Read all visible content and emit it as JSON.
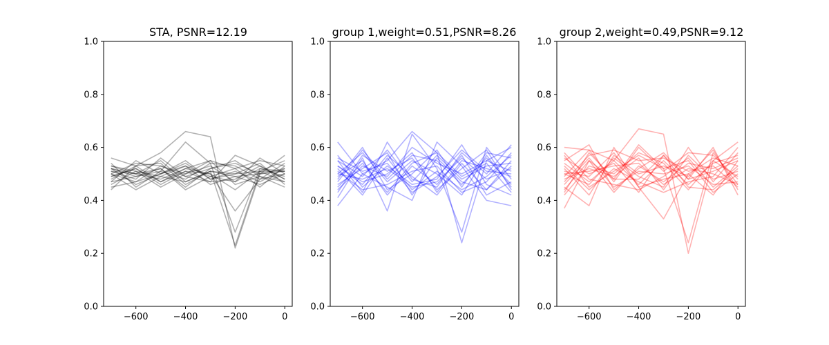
{
  "chart_data": [
    {
      "type": "line",
      "title": "STA, PSNR=12.19",
      "color": "#000000",
      "line_alpha": 0.3,
      "xlim": [
        -730,
        30
      ],
      "ylim": [
        0.0,
        1.0
      ],
      "xticks": [
        -600,
        -400,
        -200,
        0
      ],
      "xtick_labels": [
        "−600",
        "−400",
        "−200",
        "0"
      ],
      "yticks": [
        0.0,
        0.2,
        0.4,
        0.6,
        0.8,
        1.0
      ],
      "ytick_labels": [
        "0.0",
        "0.2",
        "0.4",
        "0.6",
        "0.8",
        "1.0"
      ],
      "x": [
        -700,
        -600,
        -500,
        -400,
        -300,
        -200,
        -100,
        0
      ],
      "series": [
        {
          "values": [
            0.56,
            0.53,
            0.58,
            0.66,
            0.64,
            0.22,
            0.5,
            0.52
          ]
        },
        {
          "values": [
            0.52,
            0.49,
            0.51,
            0.62,
            0.54,
            0.28,
            0.52,
            0.51
          ]
        },
        {
          "values": [
            0.44,
            0.53,
            0.47,
            0.51,
            0.5,
            0.36,
            0.48,
            0.5
          ]
        },
        {
          "values": [
            0.5,
            0.44,
            0.49,
            0.47,
            0.51,
            0.23,
            0.51,
            0.55
          ]
        },
        {
          "values": [
            0.51,
            0.48,
            0.56,
            0.49,
            0.47,
            0.57,
            0.53,
            0.48
          ]
        },
        {
          "values": [
            0.49,
            0.52,
            0.47,
            0.52,
            0.55,
            0.46,
            0.49,
            0.47
          ]
        },
        {
          "values": [
            0.53,
            0.5,
            0.52,
            0.44,
            0.49,
            0.52,
            0.55,
            0.53
          ]
        },
        {
          "values": [
            0.47,
            0.55,
            0.5,
            0.53,
            0.46,
            0.49,
            0.46,
            0.5
          ]
        },
        {
          "values": [
            0.5,
            0.47,
            0.53,
            0.49,
            0.52,
            0.54,
            0.5,
            0.57
          ]
        },
        {
          "values": [
            0.46,
            0.51,
            0.45,
            0.5,
            0.53,
            0.47,
            0.52,
            0.49
          ]
        },
        {
          "values": [
            0.52,
            0.46,
            0.5,
            0.55,
            0.48,
            0.51,
            0.47,
            0.52
          ]
        },
        {
          "values": [
            0.48,
            0.53,
            0.54,
            0.46,
            0.51,
            0.5,
            0.54,
            0.46
          ]
        },
        {
          "values": [
            0.51,
            0.5,
            0.48,
            0.52,
            0.5,
            0.44,
            0.51,
            0.51
          ]
        },
        {
          "values": [
            0.54,
            0.45,
            0.51,
            0.48,
            0.54,
            0.53,
            0.48,
            0.54
          ]
        },
        {
          "values": [
            0.49,
            0.52,
            0.46,
            0.51,
            0.47,
            0.48,
            0.53,
            0.48
          ]
        },
        {
          "values": [
            0.47,
            0.49,
            0.52,
            0.45,
            0.52,
            0.55,
            0.49,
            0.45
          ]
        },
        {
          "values": [
            0.53,
            0.51,
            0.49,
            0.53,
            0.49,
            0.47,
            0.56,
            0.5
          ]
        },
        {
          "values": [
            0.5,
            0.54,
            0.53,
            0.5,
            0.55,
            0.52,
            0.45,
            0.53
          ]
        },
        {
          "values": [
            0.45,
            0.47,
            0.5,
            0.54,
            0.48,
            0.5,
            0.51,
            0.47
          ]
        },
        {
          "values": [
            0.52,
            0.5,
            0.55,
            0.47,
            0.51,
            0.49,
            0.5,
            0.51
          ]
        }
      ]
    },
    {
      "type": "line",
      "title": "group 1,weight=0.51,PSNR=8.26",
      "color": "#0000ff",
      "line_alpha": 0.3,
      "xlim": [
        -730,
        30
      ],
      "ylim": [
        0.0,
        1.0
      ],
      "xticks": [
        -600,
        -400,
        -200,
        0
      ],
      "xtick_labels": [
        "−600",
        "−400",
        "−200",
        "0"
      ],
      "yticks": [
        0.0,
        0.2,
        0.4,
        0.6,
        0.8,
        1.0
      ],
      "ytick_labels": [
        "0.0",
        "0.2",
        "0.4",
        "0.6",
        "0.8",
        "1.0"
      ],
      "x": [
        -700,
        -600,
        -500,
        -400,
        -300,
        -200,
        -100,
        0
      ],
      "series": [
        {
          "values": [
            0.62,
            0.5,
            0.55,
            0.66,
            0.58,
            0.24,
            0.55,
            0.6
          ]
        },
        {
          "values": [
            0.41,
            0.56,
            0.36,
            0.65,
            0.52,
            0.28,
            0.6,
            0.48
          ]
        },
        {
          "values": [
            0.38,
            0.5,
            0.45,
            0.4,
            0.62,
            0.53,
            0.4,
            0.38
          ]
        },
        {
          "values": [
            0.55,
            0.43,
            0.62,
            0.48,
            0.45,
            0.58,
            0.5,
            0.61
          ]
        },
        {
          "values": [
            0.5,
            0.58,
            0.47,
            0.55,
            0.5,
            0.42,
            0.57,
            0.45
          ]
        },
        {
          "values": [
            0.46,
            0.52,
            0.58,
            0.42,
            0.56,
            0.47,
            0.44,
            0.53
          ]
        },
        {
          "values": [
            0.53,
            0.47,
            0.5,
            0.58,
            0.43,
            0.55,
            0.52,
            0.49
          ]
        },
        {
          "values": [
            0.48,
            0.6,
            0.44,
            0.5,
            0.59,
            0.45,
            0.58,
            0.56
          ]
        },
        {
          "values": [
            0.57,
            0.45,
            0.53,
            0.46,
            0.48,
            0.61,
            0.46,
            0.42
          ]
        },
        {
          "values": [
            0.44,
            0.53,
            0.49,
            0.6,
            0.54,
            0.5,
            0.55,
            0.51
          ]
        },
        {
          "values": [
            0.52,
            0.42,
            0.56,
            0.44,
            0.51,
            0.44,
            0.49,
            0.57
          ]
        },
        {
          "values": [
            0.49,
            0.55,
            0.42,
            0.53,
            0.46,
            0.57,
            0.42,
            0.47
          ]
        },
        {
          "values": [
            0.55,
            0.49,
            0.59,
            0.47,
            0.57,
            0.48,
            0.53,
            0.54
          ]
        },
        {
          "values": [
            0.43,
            0.57,
            0.51,
            0.56,
            0.44,
            0.52,
            0.59,
            0.44
          ]
        },
        {
          "values": [
            0.51,
            0.44,
            0.46,
            0.51,
            0.53,
            0.43,
            0.47,
            0.58
          ]
        },
        {
          "values": [
            0.56,
            0.51,
            0.54,
            0.43,
            0.49,
            0.59,
            0.51,
            0.5
          ]
        },
        {
          "values": [
            0.47,
            0.59,
            0.48,
            0.57,
            0.55,
            0.46,
            0.56,
            0.46
          ]
        },
        {
          "values": [
            0.53,
            0.46,
            0.57,
            0.49,
            0.42,
            0.54,
            0.44,
            0.55
          ]
        },
        {
          "values": [
            0.45,
            0.54,
            0.43,
            0.54,
            0.58,
            0.49,
            0.54,
            0.43
          ]
        },
        {
          "values": [
            0.5,
            0.48,
            0.52,
            0.45,
            0.47,
            0.56,
            0.48,
            0.52
          ]
        }
      ]
    },
    {
      "type": "line",
      "title": "group 2,weight=0.49,PSNR=9.12",
      "color": "#ff0000",
      "line_alpha": 0.3,
      "xlim": [
        -730,
        30
      ],
      "ylim": [
        0.0,
        1.0
      ],
      "xticks": [
        -600,
        -400,
        -200,
        0
      ],
      "xtick_labels": [
        "−600",
        "−400",
        "−200",
        "0"
      ],
      "yticks": [
        0.0,
        0.2,
        0.4,
        0.6,
        0.8,
        1.0
      ],
      "ytick_labels": [
        "0.0",
        "0.2",
        "0.4",
        "0.6",
        "0.8",
        "1.0"
      ],
      "x": [
        -700,
        -600,
        -500,
        -400,
        -300,
        -200,
        -100,
        0
      ],
      "series": [
        {
          "values": [
            0.6,
            0.59,
            0.55,
            0.67,
            0.65,
            0.2,
            0.55,
            0.62
          ]
        },
        {
          "values": [
            0.37,
            0.55,
            0.48,
            0.61,
            0.52,
            0.24,
            0.58,
            0.46
          ]
        },
        {
          "values": [
            0.45,
            0.38,
            0.6,
            0.45,
            0.33,
            0.5,
            0.42,
            0.55
          ]
        },
        {
          "values": [
            0.55,
            0.61,
            0.44,
            0.52,
            0.58,
            0.48,
            0.6,
            0.42
          ]
        },
        {
          "values": [
            0.5,
            0.46,
            0.56,
            0.49,
            0.45,
            0.6,
            0.47,
            0.58
          ]
        },
        {
          "values": [
            0.42,
            0.53,
            0.5,
            0.58,
            0.54,
            0.44,
            0.55,
            0.49
          ]
        },
        {
          "values": [
            0.58,
            0.48,
            0.46,
            0.44,
            0.49,
            0.56,
            0.45,
            0.53
          ]
        },
        {
          "values": [
            0.47,
            0.57,
            0.59,
            0.55,
            0.56,
            0.51,
            0.53,
            0.45
          ]
        },
        {
          "values": [
            0.53,
            0.44,
            0.52,
            0.47,
            0.43,
            0.47,
            0.49,
            0.6
          ]
        },
        {
          "values": [
            0.49,
            0.59,
            0.47,
            0.6,
            0.51,
            0.58,
            0.57,
            0.48
          ]
        },
        {
          "values": [
            0.56,
            0.5,
            0.54,
            0.43,
            0.57,
            0.45,
            0.44,
            0.52
          ]
        },
        {
          "values": [
            0.44,
            0.55,
            0.43,
            0.53,
            0.47,
            0.54,
            0.52,
            0.56
          ]
        },
        {
          "values": [
            0.52,
            0.42,
            0.57,
            0.5,
            0.53,
            0.49,
            0.59,
            0.44
          ]
        },
        {
          "values": [
            0.48,
            0.52,
            0.49,
            0.56,
            0.44,
            0.57,
            0.48,
            0.51
          ]
        },
        {
          "values": [
            0.54,
            0.47,
            0.55,
            0.46,
            0.55,
            0.46,
            0.54,
            0.57
          ]
        },
        {
          "values": [
            0.46,
            0.56,
            0.45,
            0.51,
            0.5,
            0.53,
            0.46,
            0.47
          ]
        },
        {
          "values": [
            0.51,
            0.49,
            0.58,
            0.45,
            0.48,
            0.5,
            0.56,
            0.53
          ]
        },
        {
          "values": [
            0.57,
            0.45,
            0.51,
            0.57,
            0.52,
            0.55,
            0.43,
            0.5
          ]
        },
        {
          "values": [
            0.43,
            0.58,
            0.48,
            0.48,
            0.57,
            0.48,
            0.51,
            0.55
          ]
        },
        {
          "values": [
            0.5,
            0.51,
            0.53,
            0.54,
            0.46,
            0.52,
            0.5,
            0.46
          ]
        }
      ]
    }
  ]
}
